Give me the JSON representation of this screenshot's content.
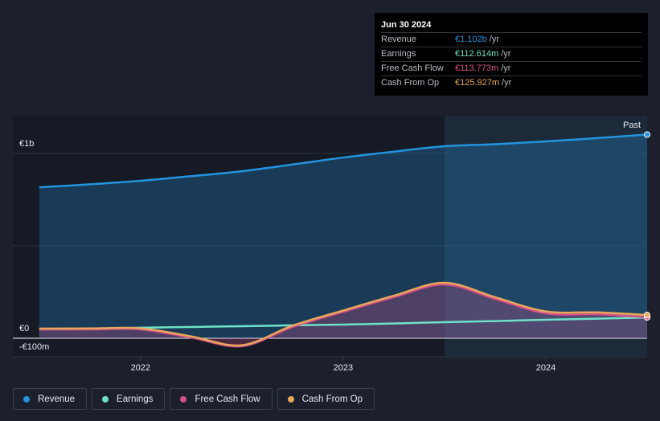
{
  "chart_data": {
    "type": "line",
    "x": [
      2021.5,
      2021.75,
      2022,
      2022.25,
      2022.5,
      2022.75,
      2023,
      2023.25,
      2023.5,
      2023.75,
      2024,
      2024.25,
      2024.5
    ],
    "series": [
      {
        "name": "Revenue",
        "color": "#2394df",
        "values": [
          817,
          833,
          852,
          877,
          904,
          940,
          978,
          1010,
          1039,
          1050,
          1065,
          1083,
          1102
        ]
      },
      {
        "name": "Earnings",
        "color": "#6ee2c8",
        "values": [
          48,
          52,
          57,
          61,
          65,
          70,
          74,
          80,
          87,
          93,
          100,
          106,
          112.614
        ]
      },
      {
        "name": "Free Cash Flow",
        "color": "#d64f8a",
        "values": [
          48,
          48,
          48,
          4,
          -43,
          61,
          143,
          222,
          291,
          213,
          135,
          130,
          113.773
        ]
      },
      {
        "name": "Cash From Op",
        "color": "#e8a85a",
        "values": [
          52,
          53,
          54,
          10,
          -38,
          68,
          150,
          230,
          300,
          222,
          145,
          140,
          125.927
        ]
      }
    ],
    "xlim": [
      2021.37,
      2024.5
    ],
    "xticks": [
      2022,
      2023,
      2024
    ],
    "ylim": [
      -100,
      1200
    ],
    "yticks": [
      {
        "value": 1000,
        "label": "€1b"
      },
      {
        "value": 0,
        "label": "€0"
      },
      {
        "value": -100,
        "label": "-€100m"
      }
    ],
    "past_label": "Past",
    "past_start": 2023.5,
    "tooltip": {
      "date": "Jun 30 2024",
      "rows": [
        {
          "label": "Revenue",
          "value": "€1.102b",
          "unit": "/yr"
        },
        {
          "label": "Earnings",
          "value": "€112.614m",
          "unit": "/yr"
        },
        {
          "label": "Free Cash Flow",
          "value": "€113.773m",
          "unit": "/yr"
        },
        {
          "label": "Cash From Op",
          "value": "€125.927m",
          "unit": "/yr"
        }
      ]
    }
  }
}
